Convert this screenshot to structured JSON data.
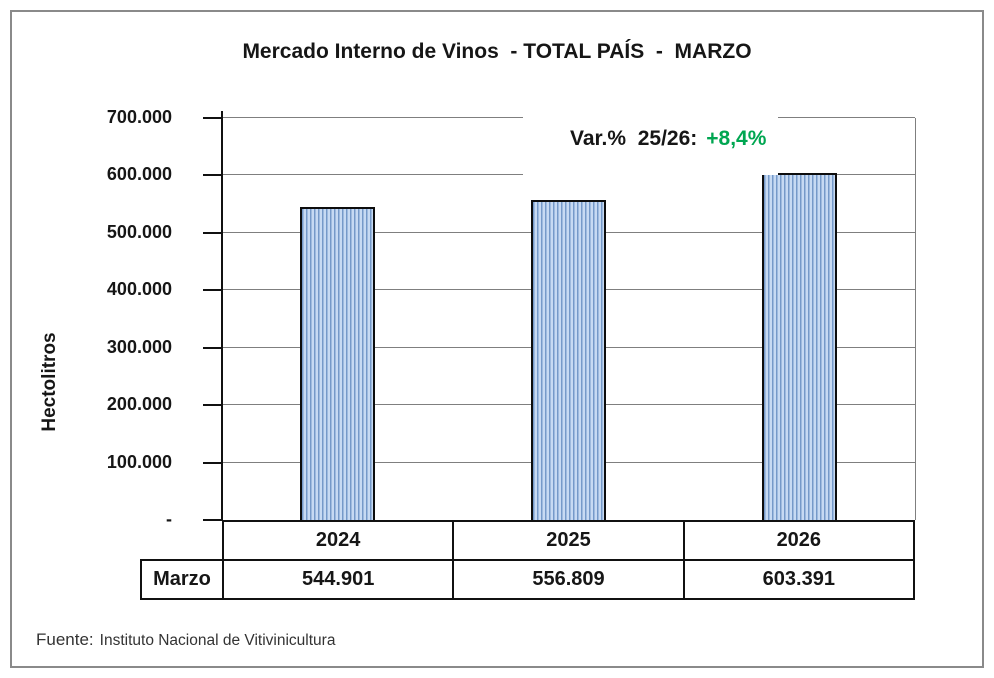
{
  "title": "Mercado Interno de Vinos  - TOTAL PAÍS  -  MARZO",
  "annotation": {
    "label": "Var.%  25/26:",
    "value": "+8,4%",
    "value_color": "#00A651"
  },
  "chart_data": {
    "type": "bar",
    "title": "Mercado Interno de Vinos - TOTAL PAÍS - MARZO",
    "categories": [
      "2024",
      "2025",
      "2026"
    ],
    "series": [
      {
        "name": "Marzo",
        "values": [
          544901,
          556809,
          603391
        ]
      }
    ],
    "value_labels": [
      "544.901",
      "556.809",
      "603.391"
    ],
    "xlabel": "",
    "ylabel": "Hectolitros",
    "ylim": [
      0,
      700000
    ],
    "ytick_step": 100000,
    "ytick_labels": [
      "-",
      "100.000",
      "200.000",
      "300.000",
      "400.000",
      "500.000",
      "600.000",
      "700.000"
    ],
    "grid": true,
    "legend": "none",
    "annotation": "Var.% 25/26: +8,4%",
    "colors": {
      "bar_fill_light": "#c7daf3",
      "bar_stripe_dark": "#7599c9",
      "bar_border": "#0d0d0d",
      "gridline": "#7f7f7f",
      "annotation_green": "#00A651"
    }
  },
  "table": {
    "row_header": "Marzo",
    "years": [
      "2024",
      "2025",
      "2026"
    ],
    "values": [
      "544.901",
      "556.809",
      "603.391"
    ]
  },
  "source": {
    "label": "Fuente:",
    "text": "Instituto Nacional de Vitivinicultura"
  }
}
